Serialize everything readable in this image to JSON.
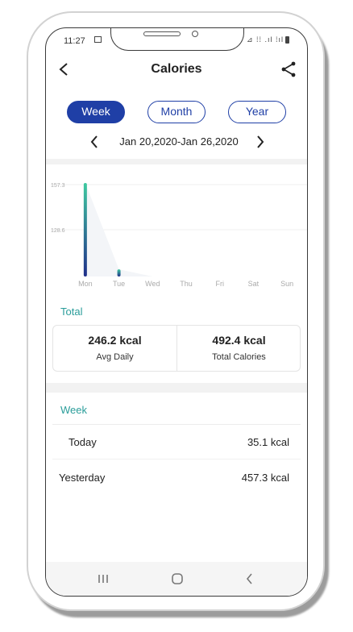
{
  "status_bar": {
    "time": "11:27",
    "right_icons": "⊿ ⁞⁞ .ıl ⁞ıl"
  },
  "header": {
    "title": "Calories",
    "back_icon": "chevron-left-icon",
    "share_icon": "share-icon"
  },
  "period_tabs": [
    {
      "label": "Week",
      "active": true
    },
    {
      "label": "Month",
      "active": false
    },
    {
      "label": "Year",
      "active": false
    }
  ],
  "date_range": {
    "text": "Jan 20,2020-Jan 26,2020"
  },
  "chart_data": {
    "type": "bar",
    "categories": [
      "Mon",
      "Tue",
      "Wed",
      "Thu",
      "Fri",
      "Sat",
      "Sun"
    ],
    "values": [
      457.3,
      35.1,
      0,
      0,
      0,
      0,
      0
    ],
    "y_tick_labels": [
      "157.3",
      "128.6"
    ],
    "colors": {
      "top": "#3fc9a0",
      "bottom": "#1f2f8a"
    },
    "grid": true
  },
  "total": {
    "label": "Total",
    "avg_value": "246.2 kcal",
    "avg_label": "Avg Daily",
    "total_value": "492.4 kcal",
    "total_label": "Total Calories"
  },
  "week": {
    "label": "Week",
    "rows": [
      {
        "name": "Today",
        "value": "35.1 kcal"
      },
      {
        "name": "Yesterday",
        "value": "457.3 kcal"
      }
    ]
  },
  "nav": {
    "recent": "recent-apps-icon",
    "home": "home-icon",
    "back": "back-icon"
  }
}
